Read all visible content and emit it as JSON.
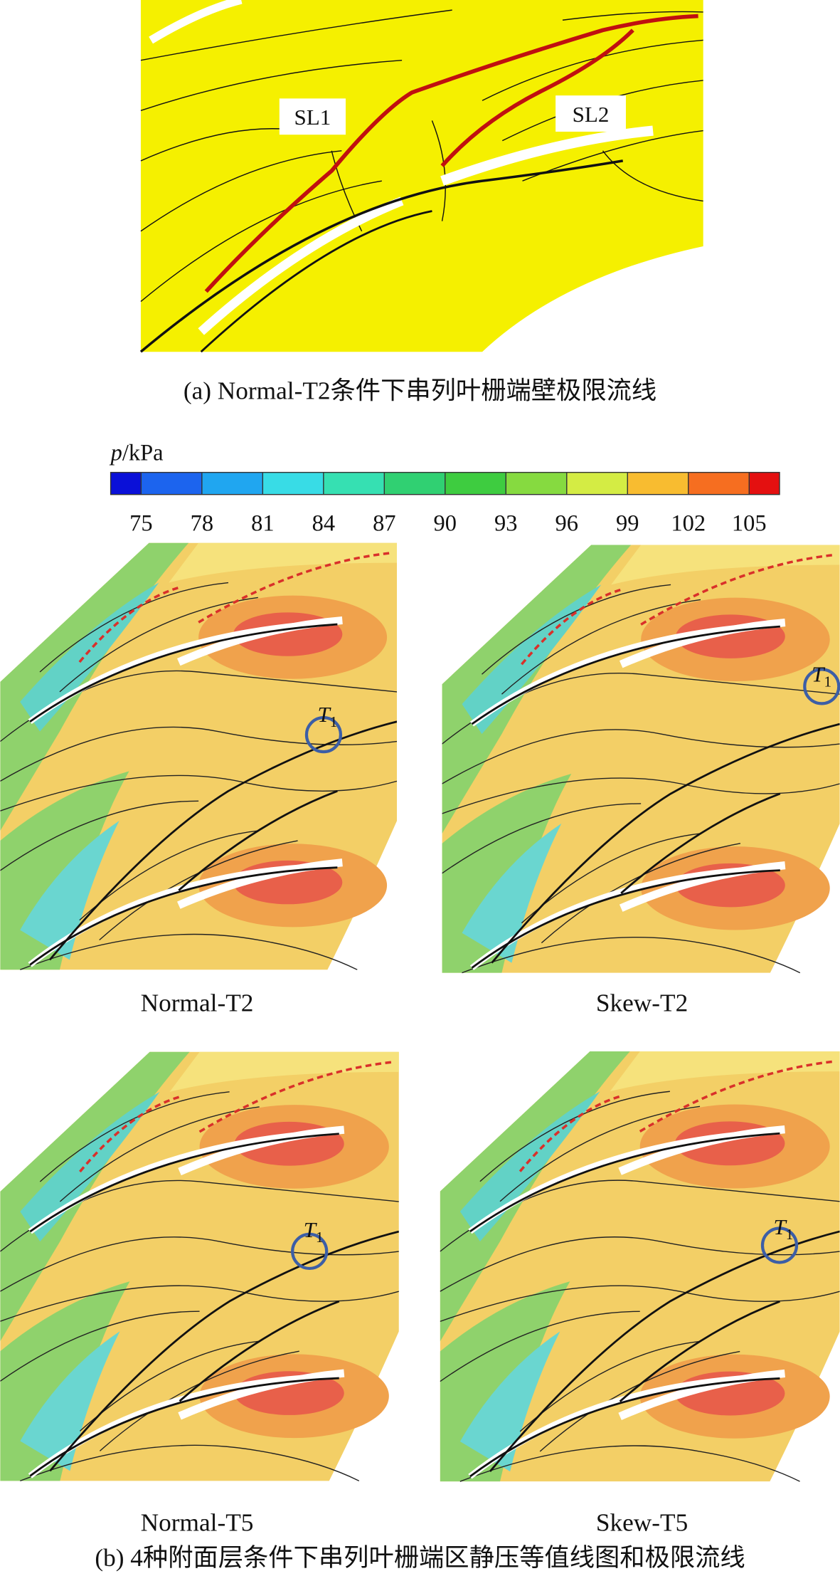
{
  "panel_a": {
    "labels": [
      "SL1",
      "SL2"
    ],
    "caption": "(a) Normal-T2条件下串列叶栅端壁极限流线"
  },
  "colorbar": {
    "symbol": "p",
    "unit": "/kPa",
    "ticks": [
      75,
      78,
      81,
      84,
      87,
      90,
      93,
      96,
      99,
      102,
      105
    ],
    "colors": [
      "#0a10d8",
      "#1c64ee",
      "#20a6f0",
      "#38dce6",
      "#36e0b2",
      "#30d072",
      "#3ecc40",
      "#86da40",
      "#d4ec44",
      "#f8bc30",
      "#f66e20",
      "#e41010"
    ]
  },
  "panels": [
    {
      "caption": "Normal-T2",
      "marker": {
        "main": "T",
        "sub": "1"
      }
    },
    {
      "caption": "Skew-T2",
      "marker": {
        "main": "T",
        "sub": "1"
      }
    },
    {
      "caption": "Normal-T5",
      "marker": {
        "main": "T",
        "sub": "1"
      }
    },
    {
      "caption": "Skew-T5",
      "marker": {
        "main": "T",
        "sub": "1"
      }
    }
  ],
  "caption_b": "(b) 4种附面层条件下串列叶栅端区静压等值线图和极限流线"
}
